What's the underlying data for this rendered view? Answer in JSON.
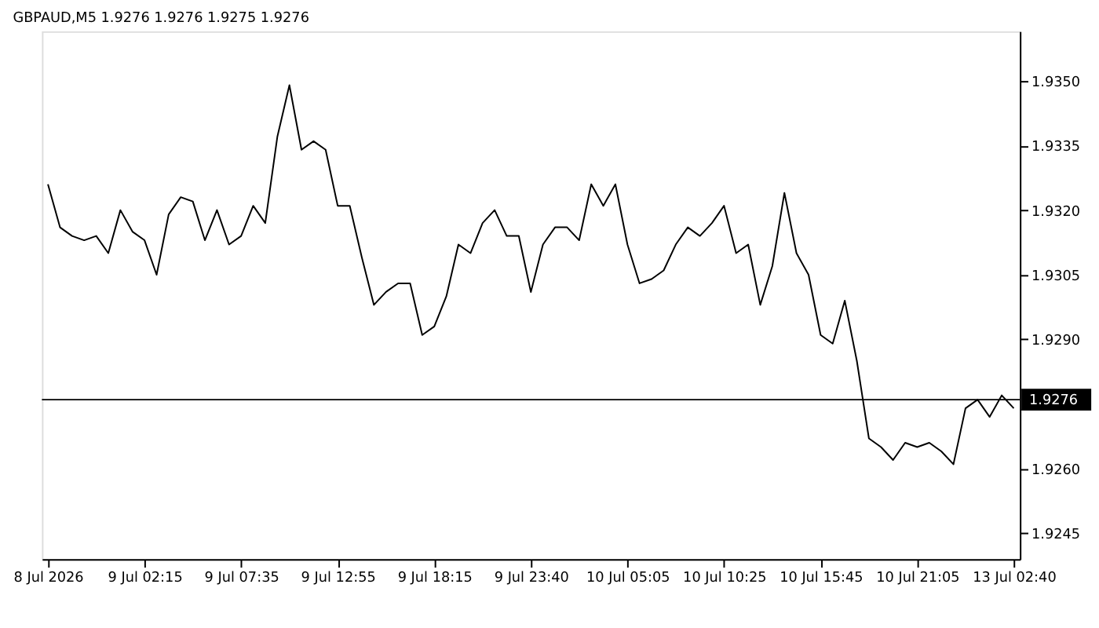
{
  "chart_data": {
    "type": "line",
    "title": "GBPAUD,M5  1.9276 1.9276 1.9275 1.9276",
    "categories": [
      "8 Jul 2026",
      null,
      null,
      null,
      null,
      null,
      null,
      null,
      "9 Jul 02:15",
      null,
      null,
      null,
      null,
      null,
      null,
      null,
      "9 Jul 07:35",
      null,
      null,
      null,
      null,
      null,
      null,
      null,
      "9 Jul 12:55",
      null,
      null,
      null,
      null,
      null,
      null,
      null,
      "9 Jul 18:15",
      null,
      null,
      null,
      null,
      null,
      null,
      null,
      "9 Jul 23:40",
      null,
      null,
      null,
      null,
      null,
      null,
      null,
      "10 Jul 05:05",
      null,
      null,
      null,
      null,
      null,
      null,
      null,
      "10 Jul 10:25",
      null,
      null,
      null,
      null,
      null,
      null,
      null,
      "10 Jul 15:45",
      null,
      null,
      null,
      null,
      null,
      null,
      null,
      "10 Jul 21:05",
      null,
      null,
      null,
      null,
      null,
      null,
      null,
      "13 Jul 02:40"
    ],
    "series": [
      {
        "color": "#000000",
        "values": [
          1.9326,
          1.9316,
          1.9314,
          1.9313,
          1.9314,
          1.931,
          1.932,
          1.9315,
          1.9313,
          1.9305,
          1.9319,
          1.9323,
          1.9322,
          1.9313,
          1.932,
          1.9312,
          1.9314,
          1.9321,
          1.9317,
          1.9337,
          1.9349,
          1.9334,
          1.9336,
          1.9334,
          1.9321,
          1.9321,
          1.9309,
          1.9298,
          1.9301,
          1.9303,
          1.9303,
          1.9291,
          1.9293,
          1.93,
          1.9312,
          1.931,
          1.9317,
          1.932,
          1.9314,
          1.9314,
          1.9301,
          1.9312,
          1.9316,
          1.9316,
          1.9313,
          1.9326,
          1.9321,
          1.9326,
          1.9312,
          1.9303,
          1.9304,
          1.9306,
          1.9312,
          1.9316,
          1.9314,
          1.9317,
          1.9321,
          1.931,
          1.9312,
          1.9298,
          1.9307,
          1.9324,
          1.931,
          1.9305,
          1.9291,
          1.9289,
          1.9299,
          1.9285,
          1.9267,
          1.9265,
          1.9262,
          1.9266,
          1.9265,
          1.9266,
          1.9264,
          1.9261,
          1.9274,
          1.9276,
          1.9272,
          1.9277,
          1.9274
        ]
      }
    ],
    "ylim": [
      1.9239,
      1.93615
    ],
    "yticks": [
      {
        "value": 1.9245,
        "label": "1.9245"
      },
      {
        "value": 1.926,
        "label": "1.9260"
      },
      {
        "value": 1.929,
        "label": "1.9290"
      },
      {
        "value": 1.9305,
        "label": "1.9305"
      },
      {
        "value": 1.932,
        "label": "1.9320"
      },
      {
        "value": 1.9335,
        "label": "1.9335"
      },
      {
        "value": 1.935,
        "label": "1.9350"
      }
    ],
    "ref_lines": [
      {
        "axis": "y",
        "value": 1.9276,
        "label": "1.9276",
        "color": "#000000"
      }
    ],
    "grid": false
  }
}
